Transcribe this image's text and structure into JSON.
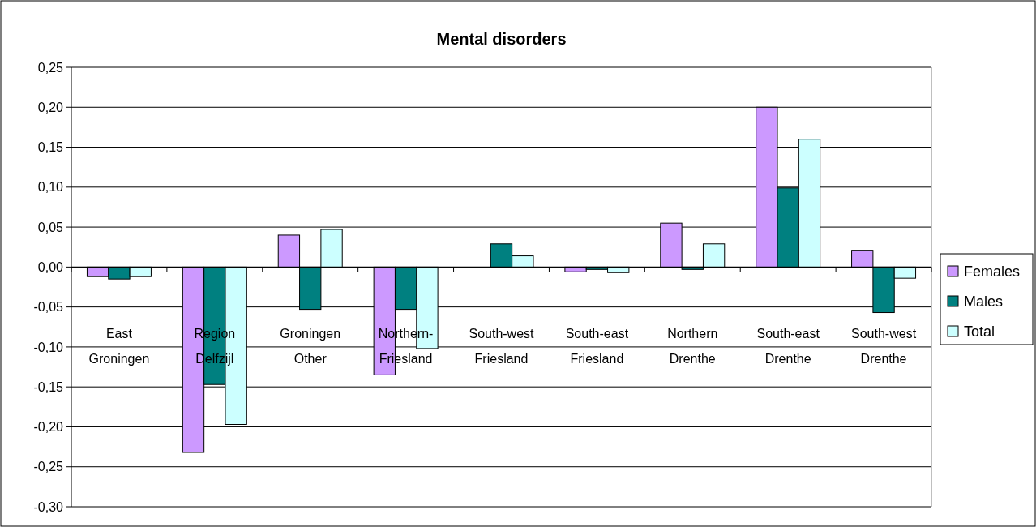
{
  "chart_data": {
    "type": "bar",
    "title": "Mental disorders",
    "categories": [
      "East Groningen",
      "Region Delfzijl",
      "Groningen Other",
      "Northern-Friesland",
      "South-west Friesland",
      "South-east Friesland",
      "Northern Drenthe",
      "South-east Drenthe",
      "South-west Drenthe"
    ],
    "series": [
      {
        "name": "Females",
        "color": "#cc99ff",
        "values": [
          -0.012,
          -0.232,
          0.04,
          -0.135,
          0,
          -0.006,
          0.055,
          0.2,
          0.021
        ]
      },
      {
        "name": "Males",
        "color": "#008080",
        "values": [
          -0.015,
          -0.147,
          -0.053,
          -0.053,
          0.029,
          -0.003,
          -0.003,
          0.099,
          -0.057
        ]
      },
      {
        "name": "Total",
        "color": "#ccffff",
        "values": [
          -0.012,
          -0.197,
          0.047,
          -0.102,
          0.014,
          -0.007,
          0.029,
          0.16,
          -0.014
        ]
      }
    ],
    "ylim": [
      -0.3,
      0.25
    ],
    "yticks": [
      {
        "value": -0.3,
        "label": "-0,30"
      },
      {
        "value": -0.25,
        "label": "-0,25"
      },
      {
        "value": -0.2,
        "label": "-0,20"
      },
      {
        "value": -0.15,
        "label": "-0,15"
      },
      {
        "value": -0.1,
        "label": "-0,10"
      },
      {
        "value": -0.05,
        "label": "-0,05"
      },
      {
        "value": 0,
        "label": "0,00"
      },
      {
        "value": 0.05,
        "label": "0,05"
      },
      {
        "value": 0.1,
        "label": "0,10"
      },
      {
        "value": 0.15,
        "label": "0,15"
      },
      {
        "value": 0.2,
        "label": "0,20"
      },
      {
        "value": 0.25,
        "label": "0,25"
      }
    ],
    "grid": "y",
    "legend": "right"
  }
}
